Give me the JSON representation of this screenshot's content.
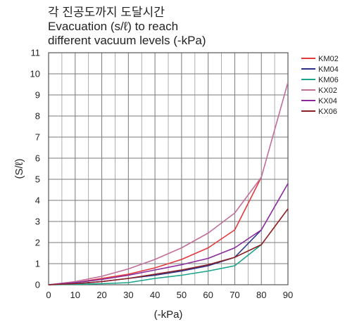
{
  "chart_data": {
    "type": "line",
    "title_lines": [
      "각 진공도까지 도달시간",
      "Evacuation (s/ℓ) to reach",
      "different vacuum levels (-kPa)"
    ],
    "xlabel": "(-kPa)",
    "ylabel": "(S/ℓ)",
    "x": [
      0,
      10,
      20,
      30,
      40,
      50,
      60,
      70,
      80,
      90
    ],
    "xticks": [
      "0",
      "10",
      "20",
      "30",
      "40",
      "50",
      "60",
      "70",
      "80",
      "90"
    ],
    "yticks": [
      "0",
      "1",
      "2",
      "3",
      "4",
      "5",
      "6",
      "7",
      "8",
      "9",
      "10",
      "11"
    ],
    "xlim": [
      0,
      90
    ],
    "ylim": [
      0,
      11
    ],
    "grid": true,
    "legend_position": "right",
    "series": [
      {
        "name": "KM02",
        "color": "#e03a3e",
        "values": [
          0,
          0.1,
          0.3,
          0.5,
          0.8,
          1.2,
          1.75,
          2.6,
          5.1,
          null
        ]
      },
      {
        "name": "KM04",
        "color": "#2b2f86",
        "values": [
          0,
          0.05,
          0.15,
          0.3,
          0.45,
          0.65,
          0.9,
          1.3,
          2.6,
          null
        ]
      },
      {
        "name": "KM06",
        "color": "#1aa58a",
        "values": [
          0,
          0.02,
          0.05,
          0.1,
          0.3,
          0.45,
          0.65,
          0.9,
          1.9,
          null
        ]
      },
      {
        "name": "KX02",
        "color": "#c06f9a",
        "values": [
          0,
          0.15,
          0.4,
          0.75,
          1.2,
          1.75,
          2.45,
          3.4,
          5.1,
          9.6
        ]
      },
      {
        "name": "KX04",
        "color": "#8a2a9a",
        "values": [
          0,
          0.1,
          0.25,
          0.45,
          0.7,
          0.95,
          1.25,
          1.75,
          2.6,
          4.8
        ]
      },
      {
        "name": "KX06",
        "color": "#8b1f23",
        "values": [
          0,
          0.05,
          0.15,
          0.3,
          0.5,
          0.7,
          0.95,
          1.3,
          1.9,
          3.6
        ]
      }
    ]
  }
}
